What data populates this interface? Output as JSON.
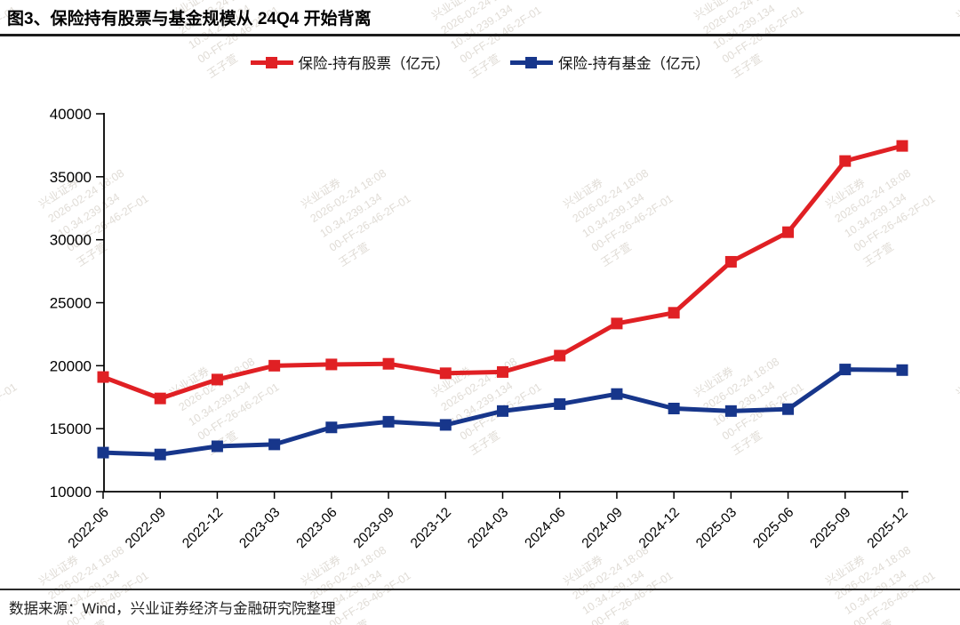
{
  "title": "图3、保险持有股票与基金规模从 24Q4 开始背离",
  "legend": [
    {
      "label": "保险-持有股票（亿元）",
      "color": "#e02024"
    },
    {
      "label": "保险-持有基金（亿元）",
      "color": "#17368b"
    }
  ],
  "source": "数据来源：Wind，兴业证券经济与金融研究院整理",
  "watermark": {
    "lines": [
      "兴业证券",
      "2026-02-24 18:08",
      "10.34.239.134",
      "00-FF-26-46-2F-01",
      "王子萱"
    ]
  },
  "chart_data": {
    "type": "line",
    "title": "保险持有股票与基金规模",
    "categories": [
      "2022-06",
      "2022-09",
      "2022-12",
      "2023-03",
      "2023-06",
      "2023-09",
      "2023-12",
      "2024-03",
      "2024-06",
      "2024-09",
      "2024-12",
      "2025-03",
      "2025-06",
      "2025-09",
      "2025-12"
    ],
    "series": [
      {
        "name": "保险-持有股票（亿元）",
        "color": "#e02024",
        "marker": "square",
        "values": [
          19100,
          17400,
          18900,
          20000,
          20100,
          20150,
          19400,
          19500,
          20800,
          23350,
          24200,
          28250,
          30600,
          36250,
          37450
        ]
      },
      {
        "name": "保险-持有基金（亿元）",
        "color": "#17368b",
        "marker": "square",
        "values": [
          13100,
          12950,
          13600,
          13750,
          15100,
          15550,
          15300,
          16400,
          16950,
          17750,
          16600,
          16400,
          16550,
          19700,
          19650
        ]
      }
    ],
    "ylim": [
      10000,
      40000
    ],
    "yticks": [
      10000,
      15000,
      20000,
      25000,
      30000,
      35000,
      40000
    ],
    "xlabel": "",
    "ylabel": "",
    "grid": false,
    "legend_position": "top",
    "x_tick_rotation": -45
  }
}
